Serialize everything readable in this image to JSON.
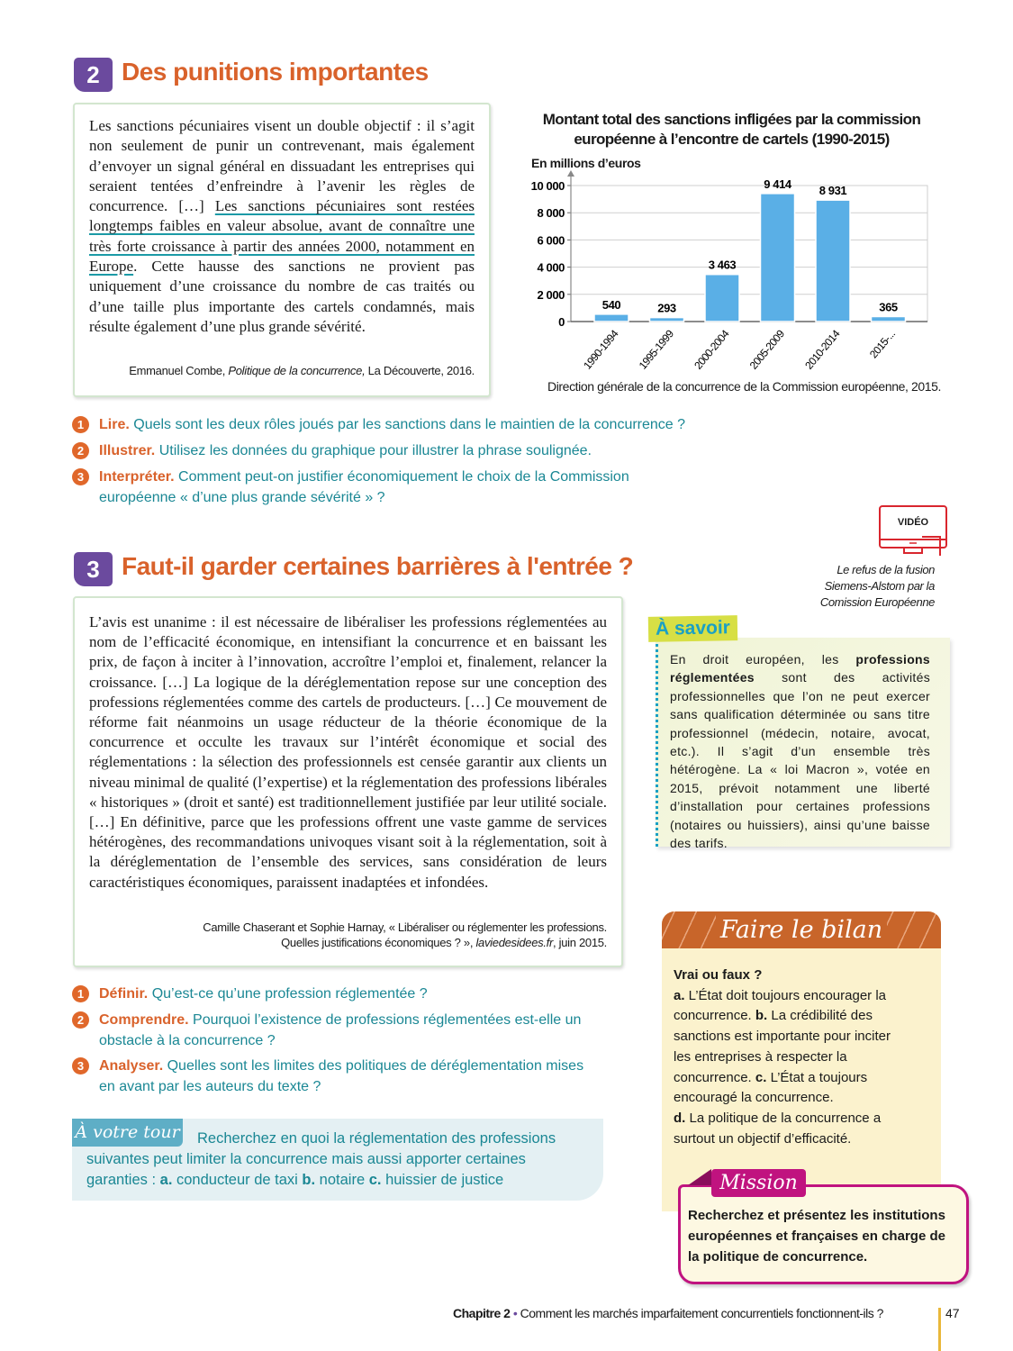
{
  "doc2": {
    "number": "2",
    "title": "Des punitions importantes",
    "text_before": "Les sanctions pécuniaires visent un double objectif : il s’agit non seulement de punir un contrevenant, mais également d’envoyer un signal général en dissuadant les entreprises qui seraient tentées d’enfreindre à l’avenir les règles de concurrence. […] ",
    "text_underlined": "Les sanctions pécuniaires sont restées longtemps faibles en valeur absolue, avant de connaître une très forte croissance à partir des années 2000, notamment en Europe",
    "text_after": ". Cette hausse des sanctions ne provient pas uniquement d’une croissance du nombre de cas traités ou d’une taille plus importante des cartels condamnés, mais résulte également d’une plus grande sévérité.",
    "source_author": "Emmanuel Combe, ",
    "source_title": "Politique de la concurrence,",
    "source_rest": " La Découverte, 2016.",
    "questions": [
      {
        "num": "1",
        "label": "Lire.",
        "text": "Quels sont les deux rôles joués par les sanctions dans le maintien de la concurrence ?"
      },
      {
        "num": "2",
        "label": "Illustrer.",
        "text": "Utilisez les données du graphique pour illustrer la phrase soulignée."
      },
      {
        "num": "3",
        "label": "Interpréter.",
        "text": "Comment peut-on justifier économiquement le choix de la Commission européenne « d’une plus grande sévérité » ?"
      }
    ]
  },
  "chart_data": {
    "type": "bar",
    "title_line1": "Montant total des sanctions infligées par la commission",
    "title_line2": "européenne à l’encontre de cartels (1990-2015)",
    "ylabel": "En millions d’euros",
    "xlabel": "",
    "categories": [
      "1990-1994",
      "1995-1999",
      "2000-2004",
      "2005-2009",
      "2010-2014",
      "2015-..."
    ],
    "values": [
      540,
      293,
      3463,
      9414,
      8931,
      365
    ],
    "value_labels": [
      "540",
      "293",
      "3 463",
      "9 414",
      "8 931",
      "365"
    ],
    "ylim": [
      0,
      10000
    ],
    "yticks": [
      0,
      2000,
      4000,
      6000,
      8000,
      10000
    ],
    "ytick_labels": [
      "0",
      "2 000",
      "4 000",
      "6 000",
      "8 000",
      "10 000"
    ],
    "grid": true,
    "bar_color": "#5aafe6",
    "source": "Direction générale de la concurrence de la Commission européenne, 2015."
  },
  "doc3": {
    "number": "3",
    "title": "Faut-il garder certaines barrières à l'entrée ?",
    "text": "L’avis est unanime : il est nécessaire de libéraliser les professions réglementées au nom de l’efficacité économique, en intensifiant la concurrence et en baissant les prix, de façon à inciter à l’innovation, accroître l’emploi et, finalement, relancer la croissance. […] La logique de la déréglementation repose sur une conception des professions réglementées comme des cartels de producteurs. […] Ce mouvement de réforme fait néanmoins un usage réducteur de la théorie économique de la concurrence et occulte les travaux sur l’intérêt économique et social des réglementations : la sélection des professionnels est censée garantir aux clients un niveau minimal de qualité (l’expertise) et la réglementation des professions libérales « historiques » (droit et santé) est traditionnellement justifiée par leur utilité sociale. […] En définitive, parce que les professions offrent une vaste gamme de services hétérogènes, des recommandations univoques visant soit à la réglementation, soit à la déréglementation de l’ensemble des services, sans considération de leurs caractéristiques économiques, paraissent inadaptées et infondées.",
    "source_line1": "Camille Chaserant et Sophie Harnay, « Libéraliser ou réglementer les professions.",
    "source_line2_a": "Quelles justifications économiques ? », ",
    "source_line2_site": "laviedesidees.fr",
    "source_line2_b": ", juin 2015.",
    "questions": [
      {
        "num": "1",
        "label": "Définir.",
        "text": "Qu’est-ce qu’une profession réglementée ?"
      },
      {
        "num": "2",
        "label": "Comprendre.",
        "text": "Pourquoi l’existence de professions réglementées est-elle un obstacle à la concurrence ?"
      },
      {
        "num": "3",
        "label": "Analyser.",
        "text": "Quelles sont les limites des politiques de déréglementation mises en avant par les auteurs du texte ?"
      }
    ]
  },
  "a_votre_tour": {
    "label": "À votre tour",
    "text_a": "Recherchez en quoi la réglementation des professions suivantes peut limiter la concurrence mais aussi apporter certaines garanties : ",
    "a": "a.",
    "a_text": " conducteur de taxi ",
    "b": "b.",
    "b_text": " notaire ",
    "c": "c.",
    "c_text": " huissier de justice"
  },
  "video": {
    "label": "VIDÉO",
    "caption_line1": "Le refus de la fusion",
    "caption_line2": "Siemens-Alstom par la",
    "caption_line3": "Comission Européenne",
    "icon": "monitor-icon",
    "color": "#d9262e"
  },
  "a_savoir": {
    "label": "À savoir",
    "text_a": "En droit européen, les ",
    "text_bold": "professions réglementées",
    "text_b": " sont des activités professionnelles que l’on ne peut exercer sans qualification déterminée ou sans titre professionnel (médecin, notaire, avocat, etc.). Il s’agit d’un ensemble très hétérogène. La « loi Macron », votée en 2015, prévoit notamment une liberté d’installation pour certaines professions (notaires ou huissiers), ainsi qu’une baisse des tarifs."
  },
  "bilan": {
    "title": "Faire le bilan",
    "heading": "Vrai ou faux ?",
    "items": [
      {
        "letter": "a.",
        "text": " L’État doit toujours encourager la concurrence. "
      },
      {
        "letter": "b.",
        "text": " La crédibilité des sanctions est importante pour inciter les entreprises à respecter la concurrence. "
      },
      {
        "letter": "c.",
        "text": " L’État a toujours encouragé la concurrence."
      },
      {
        "letter": "d.",
        "text": " La politique de la concurrence a surtout un objectif d’efficacité."
      }
    ]
  },
  "mission": {
    "label": "Mission",
    "text": "Recherchez et présentez les institutions européennes et françaises en charge de la politique de concurrence."
  },
  "footer": {
    "chapter": "Chapitre 2",
    "bullet": " • ",
    "title": "Comment les marchés imparfaitement concurrentiels fonctionnent-ils ?",
    "page": "47"
  },
  "colors": {
    "accent_orange": "#d9622b",
    "teal": "#1a8794",
    "purple": "#6b4a9e",
    "magenta": "#c0137f"
  }
}
